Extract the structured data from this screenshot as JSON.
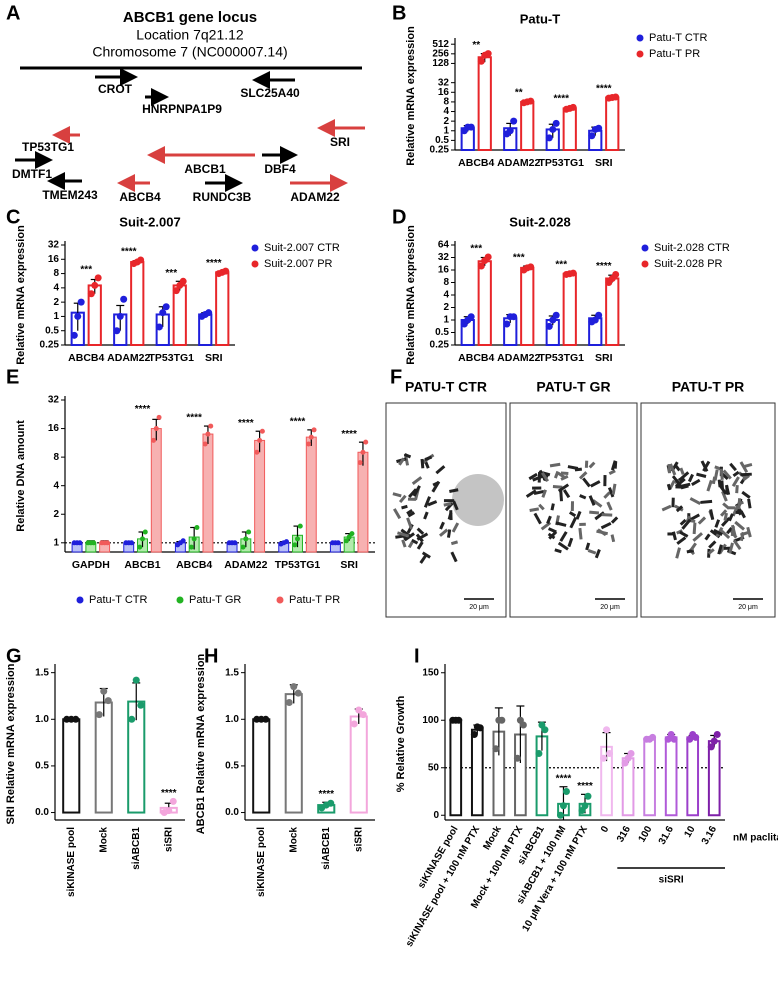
{
  "panel_labels": [
    "A",
    "B",
    "C",
    "D",
    "E",
    "F",
    "G",
    "H",
    "I"
  ],
  "gene_locus": {
    "title": "ABCB1 gene locus",
    "location": "Location 7q21.12",
    "chromosome": "Chromosome 7 (NC000007.14)",
    "genes": [
      "CROT",
      "HNRPNPA1P9",
      "SLC25A40",
      "SRI",
      "TP53TG1",
      "ABCB1",
      "DBF4",
      "DMTF1",
      "TMEM243",
      "ABCB4",
      "RUNDC3B",
      "ADAM22"
    ]
  },
  "karyotypes": {
    "titles": [
      "PATU-T CTR",
      "PATU-T GR",
      "PATU-T PR"
    ],
    "scale_bars": [
      "20 μm",
      "20 μm",
      "20 μm"
    ]
  },
  "chart_data": [
    {
      "type": "bar",
      "title": "Patu-T",
      "ylabel": "Relative mRNA expression",
      "log": true,
      "categories": [
        "ABCB4",
        "ADAM22",
        "TP53TG1",
        "SRI"
      ],
      "series": [
        {
          "name": "Patu-T CTR",
          "color": "#1f1fdb",
          "values": [
            1.2,
            1.2,
            1.1,
            1.0
          ],
          "errors": [
            0.25,
            0.5,
            0.5,
            0.3
          ],
          "points": [
            [
              1.0,
              1.3,
              1.3
            ],
            [
              0.8,
              1.0,
              2.0
            ],
            [
              0.6,
              1.1,
              1.7
            ],
            [
              0.7,
              1.1,
              1.2
            ]
          ]
        },
        {
          "name": "Patu-T PR",
          "color": "#e8262a",
          "values": [
            200,
            8,
            5,
            11
          ],
          "errors": [
            60,
            0.6,
            0.5,
            0.6
          ],
          "points": [
            [
              150,
              230,
              260
            ],
            [
              7.5,
              8,
              8.5
            ],
            [
              4.7,
              5,
              5.4
            ],
            [
              10.5,
              11,
              11.4
            ]
          ]
        }
      ],
      "significance": [
        "**",
        "**",
        "****",
        "****"
      ],
      "ylim": [
        0.25,
        600
      ],
      "yticks": [
        0.25,
        0.5,
        1,
        2,
        4,
        8,
        16,
        32,
        128,
        256,
        512
      ]
    },
    {
      "type": "bar",
      "title": "Suit-2.007",
      "ylabel": "Relative mRNA expression",
      "log": true,
      "categories": [
        "ABCB4",
        "ADAM22",
        "TP53TG1",
        "SRI"
      ],
      "series": [
        {
          "name": "Suit-2.007 CTR",
          "color": "#1f1fdb",
          "values": [
            1.2,
            1.1,
            1.1,
            1.1
          ],
          "errors": [
            0.7,
            0.6,
            0.5,
            0.1
          ],
          "points": [
            [
              0.4,
              1.0,
              2.0
            ],
            [
              0.5,
              1.0,
              2.3
            ],
            [
              0.6,
              1.2,
              1.6
            ],
            [
              1.0,
              1.1,
              1.2
            ]
          ]
        },
        {
          "name": "Suit-2.007 PR",
          "color": "#e8262a",
          "values": [
            4.5,
            14,
            4.5,
            8.5
          ],
          "errors": [
            1.5,
            1,
            1,
            0.5
          ],
          "points": [
            [
              3,
              4.5,
              6.5
            ],
            [
              13,
              14,
              15.5
            ],
            [
              3.5,
              4.5,
              5.5
            ],
            [
              8,
              8.5,
              9
            ]
          ]
        }
      ],
      "significance": [
        "***",
        "****",
        "***",
        "****"
      ],
      "ylim": [
        0.25,
        32
      ],
      "yticks": [
        0.25,
        0.5,
        1,
        2,
        4,
        8,
        16,
        32
      ]
    },
    {
      "type": "bar",
      "title": "Suit-2.028",
      "ylabel": "Relative mRNA expression",
      "log": true,
      "categories": [
        "ABCB4",
        "ADAM22",
        "TP53TG1",
        "SRI"
      ],
      "series": [
        {
          "name": "Suit-2.028 CTR",
          "color": "#1f1fdb",
          "values": [
            1.0,
            1.1,
            1.0,
            1.1
          ],
          "errors": [
            0.2,
            0.25,
            0.25,
            0.2
          ],
          "points": [
            [
              0.8,
              1.0,
              1.2
            ],
            [
              0.8,
              1.2,
              1.2
            ],
            [
              0.7,
              1.0,
              1.3
            ],
            [
              0.9,
              1.0,
              1.3
            ]
          ]
        },
        {
          "name": "Suit-2.028 PR",
          "color": "#e8262a",
          "values": [
            26,
            18,
            13,
            10
          ],
          "errors": [
            6,
            2,
            0.7,
            2
          ],
          "points": [
            [
              20,
              27,
              33
            ],
            [
              16,
              18,
              19
            ],
            [
              12.5,
              13,
              13.5
            ],
            [
              8,
              10,
              12.5
            ]
          ]
        }
      ],
      "significance": [
        "***",
        "***",
        "***",
        "****"
      ],
      "ylim": [
        0.25,
        64
      ],
      "yticks": [
        0.25,
        0.5,
        1,
        2,
        4,
        8,
        16,
        32,
        64
      ]
    },
    {
      "type": "bar",
      "ylabel": "Relative DNA amount",
      "log": true,
      "refline": 1,
      "categories": [
        "GAPDH",
        "ABCB1",
        "ABCB4",
        "ADAM22",
        "TP53TG1",
        "SRI"
      ],
      "series": [
        {
          "name": "Patu-T CTR",
          "color": "#1f1fdb",
          "fill": "#b9c0f7",
          "values": [
            1,
            1,
            1,
            1,
            1,
            1
          ],
          "errors": [
            0.03,
            0.03,
            0.03,
            0.03,
            0.03,
            0.03
          ],
          "points": [
            [
              1,
              1,
              1
            ],
            [
              1,
              1,
              1
            ],
            [
              0.95,
              1,
              1.05
            ],
            [
              1,
              1,
              1
            ],
            [
              0.97,
              1,
              1.03
            ],
            [
              1,
              1,
              1
            ]
          ]
        },
        {
          "name": "Patu-T GR",
          "color": "#22b322",
          "fill": "#b3ebad",
          "values": [
            1,
            1.1,
            1.15,
            1.1,
            1.2,
            1.15
          ],
          "errors": [
            0.05,
            0.2,
            0.3,
            0.2,
            0.3,
            0.1
          ],
          "points": [
            [
              1,
              1,
              1
            ],
            [
              0.9,
              1.1,
              1.3
            ],
            [
              0.9,
              1.1,
              1.45
            ],
            [
              0.9,
              1.1,
              1.3
            ],
            [
              0.95,
              1.1,
              1.5
            ],
            [
              1.05,
              1.15,
              1.25
            ]
          ]
        },
        {
          "name": "Patu-T PR",
          "color": "#f15a5a",
          "fill": "#f7b1b1",
          "values": [
            1,
            16,
            14,
            12,
            13,
            9
          ],
          "errors": [
            0.05,
            4,
            3,
            3,
            2.5,
            2.5
          ],
          "points": [
            [
              1,
              1,
              1
            ],
            [
              12,
              16,
              21
            ],
            [
              11,
              14,
              17
            ],
            [
              9,
              12,
              15
            ],
            [
              11,
              13,
              15.5
            ],
            [
              7,
              9,
              11.5
            ]
          ]
        }
      ],
      "significance": [
        null,
        "****",
        "****",
        "****",
        "****",
        "****"
      ],
      "ylim": [
        0.8,
        32
      ],
      "yticks": [
        1,
        2,
        4,
        8,
        16,
        32
      ]
    },
    {
      "type": "bar",
      "ylabel": "SRI Relative mRNA expression",
      "categories": [
        "siKINASE pool",
        "Mock",
        "siABCB1",
        "siSRI"
      ],
      "series": [
        {
          "colors": [
            "#111111",
            "#777777",
            "#1a9b6b",
            "#f3a6dc"
          ],
          "values": [
            1.0,
            1.18,
            1.19,
            0.05
          ],
          "errors": [
            0.005,
            0.15,
            0.2,
            0.05
          ],
          "points": [
            [
              1,
              1,
              1
            ],
            [
              1.05,
              1.3,
              1.2
            ],
            [
              1.0,
              1.42,
              1.15
            ],
            [
              0,
              0.02,
              0.12
            ]
          ]
        }
      ],
      "significance": [
        null,
        null,
        null,
        "****"
      ],
      "ylim": [
        -0.08,
        1.55
      ],
      "yticks": [
        {
          "value": 0,
          "label": "0.0"
        },
        {
          "value": 0.5,
          "label": "0.5"
        },
        {
          "value": 1,
          "label": "1.0"
        },
        {
          "value": 1.5,
          "label": "1.5"
        }
      ]
    },
    {
      "type": "bar",
      "ylabel": "ABCB1 Relative mRNA expression",
      "categories": [
        "siKINASE pool",
        "Mock",
        "siABCB1",
        "siSRI"
      ],
      "series": [
        {
          "colors": [
            "#111111",
            "#777777",
            "#1a9b6b",
            "#f3a6dc"
          ],
          "values": [
            1.0,
            1.27,
            0.08,
            1.03
          ],
          "errors": [
            0.005,
            0.1,
            0.03,
            0.08
          ],
          "points": [
            [
              1,
              1,
              1
            ],
            [
              1.18,
              1.35,
              1.28
            ],
            [
              0.05,
              0.08,
              0.1
            ],
            [
              0.95,
              1.1,
              1.05
            ]
          ]
        }
      ],
      "significance": [
        null,
        null,
        "****",
        null
      ],
      "ylim": [
        -0.08,
        1.55
      ],
      "yticks": [
        {
          "value": 0,
          "label": "0.0"
        },
        {
          "value": 0.5,
          "label": "0.5"
        },
        {
          "value": 1,
          "label": "1.0"
        },
        {
          "value": 1.5,
          "label": "1.5"
        }
      ]
    },
    {
      "type": "bar",
      "ylabel": "% Relative Growth",
      "refline": 50,
      "categories": [
        "siKINASE pool",
        "siKINASE pool + 100 nM PTX",
        "Mock",
        "Mock + 100 nM PTX",
        "siABCB1",
        "siABCB1 + 100 nM",
        "10 μM Vera + 100 nM PTX",
        "0",
        "316",
        "100",
        "31.6",
        "10",
        "3.16"
      ],
      "series": [
        {
          "colors": [
            "#111111",
            "#111111",
            "#666666",
            "#666666",
            "#1a9b6b",
            "#1a9b6b",
            "#1a9b6b",
            "#f0b8ee",
            "#e29ae6",
            "#c77ee0",
            "#b05ad8",
            "#9b3fca",
            "#7e1fa8"
          ],
          "values": [
            100,
            90,
            88,
            85,
            83,
            12,
            12,
            72,
            60,
            80,
            82,
            82,
            78
          ],
          "errors": [
            1,
            5,
            25,
            30,
            15,
            18,
            10,
            15,
            5,
            2,
            3,
            2,
            6
          ],
          "points": [
            [
              100,
              100,
              100
            ],
            [
              85,
              93,
              92
            ],
            [
              70,
              100,
              100
            ],
            [
              60,
              100,
              95
            ],
            [
              65,
              95,
              90
            ],
            [
              0,
              10,
              25
            ],
            [
              5,
              10,
              20
            ],
            [
              60,
              90,
              65
            ],
            [
              55,
              60,
              65
            ],
            [
              80,
              80,
              82
            ],
            [
              80,
              85,
              80
            ],
            [
              80,
              85,
              82
            ],
            [
              72,
              78,
              85
            ]
          ]
        }
      ],
      "significance": [
        null,
        null,
        null,
        null,
        null,
        "****",
        "****",
        null,
        null,
        null,
        null,
        null,
        null
      ],
      "annotations": [
        "nM paclitaxel",
        "siSRI"
      ],
      "ylim": [
        -5,
        155
      ],
      "yticks": [
        0,
        50,
        100,
        150
      ]
    }
  ]
}
